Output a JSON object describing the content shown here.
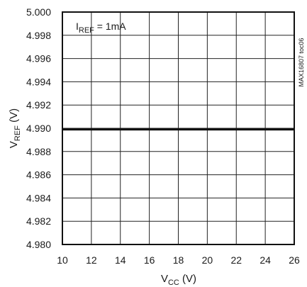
{
  "chart_data": {
    "type": "line",
    "title": "",
    "annotation": {
      "main": "I",
      "sub": "REF",
      "rest": " = 1mA"
    },
    "side_label": "MAX16807 toc06",
    "xlabel": {
      "main": "V",
      "sub": "CC",
      "rest": " (V)"
    },
    "ylabel": {
      "main": "V",
      "sub": "REF",
      "rest": " (V)"
    },
    "xlim": [
      10,
      26
    ],
    "ylim": [
      4.98,
      5.0
    ],
    "x_ticks": [
      "10",
      "12",
      "14",
      "16",
      "18",
      "20",
      "22",
      "24",
      "26"
    ],
    "y_ticks": [
      "4.980",
      "4.982",
      "4.984",
      "4.986",
      "4.988",
      "4.990",
      "4.992",
      "4.994",
      "4.996",
      "4.998",
      "5.000"
    ],
    "grid": true,
    "series": [
      {
        "x": [
          10,
          12,
          14,
          16,
          18,
          20,
          22,
          24,
          26
        ],
        "y": [
          4.9899,
          4.9899,
          4.9899,
          4.9899,
          4.9899,
          4.9899,
          4.9899,
          4.9899,
          4.9899
        ]
      }
    ]
  }
}
